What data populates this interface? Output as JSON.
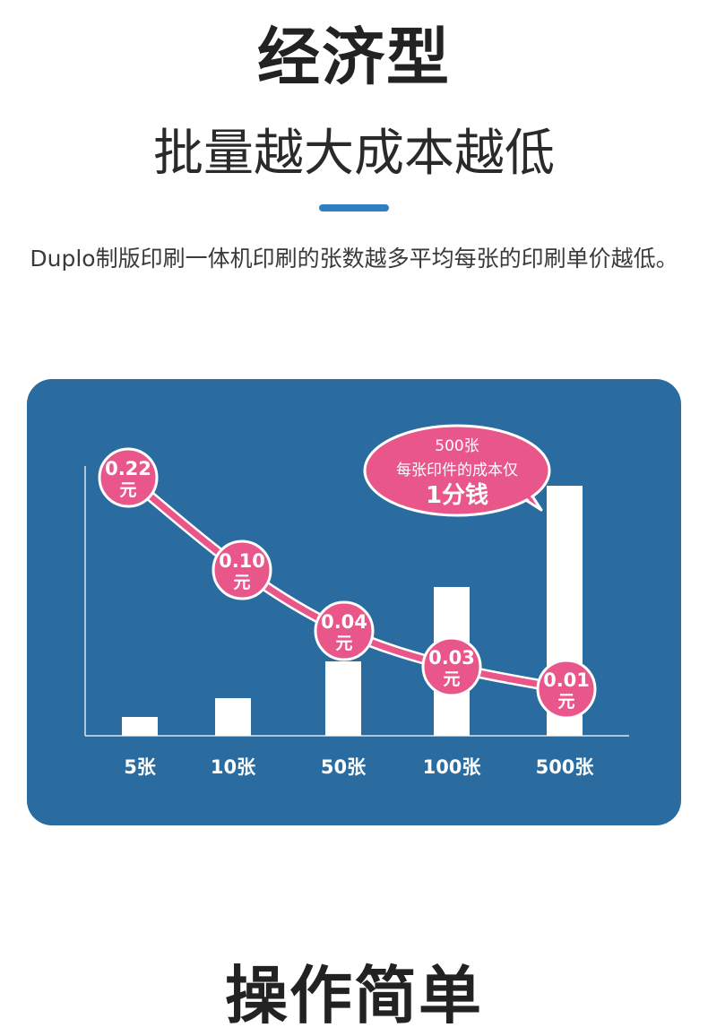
{
  "header": {
    "title": "经济型",
    "subtitle": "批量越大成本越低",
    "description": "Duplo制版印刷一体机印刷的张数越多平均每张的印刷单价越低。"
  },
  "footer": {
    "title": "操作简单"
  },
  "colors": {
    "panel": "#2a6c9f",
    "bar": "#ffffff",
    "accent": "#e8568a",
    "divider": "#2e7fc2"
  },
  "chart_data": {
    "type": "bar",
    "categories": [
      "5张",
      "10张",
      "50张",
      "100张",
      "500张"
    ],
    "bar_values": [
      5,
      10,
      50,
      100,
      500
    ],
    "unit_price_labels": [
      "0.22\n元",
      "0.10\n元",
      "0.04\n元",
      "0.03\n元",
      "0.01\n元"
    ],
    "unit_prices": [
      0.22,
      0.1,
      0.04,
      0.03,
      0.01
    ],
    "callout": {
      "line1": "500张",
      "line2": "每张印件的成本仅",
      "line3": "1分钱"
    }
  }
}
